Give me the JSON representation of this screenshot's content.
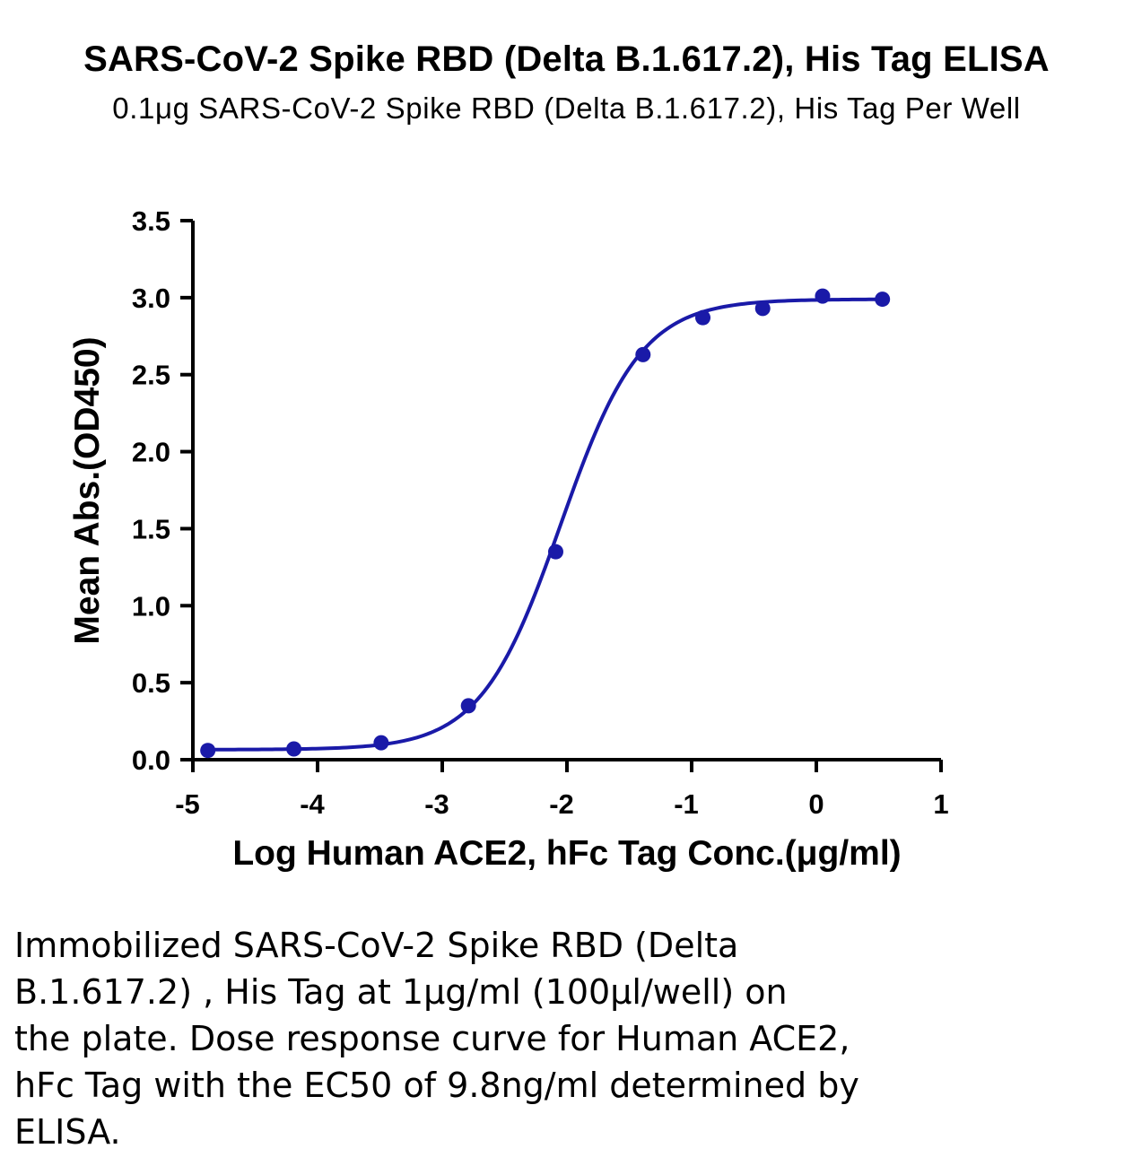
{
  "chart_data": {
    "type": "scatter",
    "title": "SARS-CoV-2 Spike RBD (Delta B.1.617.2), His Tag ELISA",
    "subtitle": "0.1μg SARS-CoV-2 Spike RBD (Delta B.1.617.2), His Tag Per Well",
    "xlabel": "Log Human ACE2, hFc Tag Conc.(μg/ml)",
    "ylabel": "Mean Abs.(OD450)",
    "xlim": [
      -5,
      1
    ],
    "ylim": [
      0,
      3.5
    ],
    "x_ticks": [
      "-5",
      "-4",
      "-3",
      "-2",
      "-1",
      "0",
      "1"
    ],
    "y_ticks": [
      "0.0",
      "0.5",
      "1.0",
      "1.5",
      "2.0",
      "2.5",
      "3.0",
      "3.5"
    ],
    "color": "#1a1aa8",
    "fit": "four-parameter logistic",
    "series": [
      {
        "x": [
          -4.88,
          -4.19,
          -3.49,
          -2.79,
          -2.09,
          -1.39,
          -0.91,
          -0.43,
          0.05,
          0.53
        ],
        "y": [
          0.06,
          0.07,
          0.11,
          0.35,
          1.35,
          2.63,
          2.87,
          2.93,
          3.01,
          2.99
        ]
      }
    ]
  },
  "caption": {
    "lines": [
      "Immobilized SARS-CoV-2 Spike RBD (Delta",
      "B.1.617.2) , His Tag at 1μg/ml (100μl/well) on",
      "the plate. Dose response curve for Human ACE2,",
      "hFc Tag with the EC50 of 9.8ng/ml determined by",
      "ELISA."
    ]
  }
}
